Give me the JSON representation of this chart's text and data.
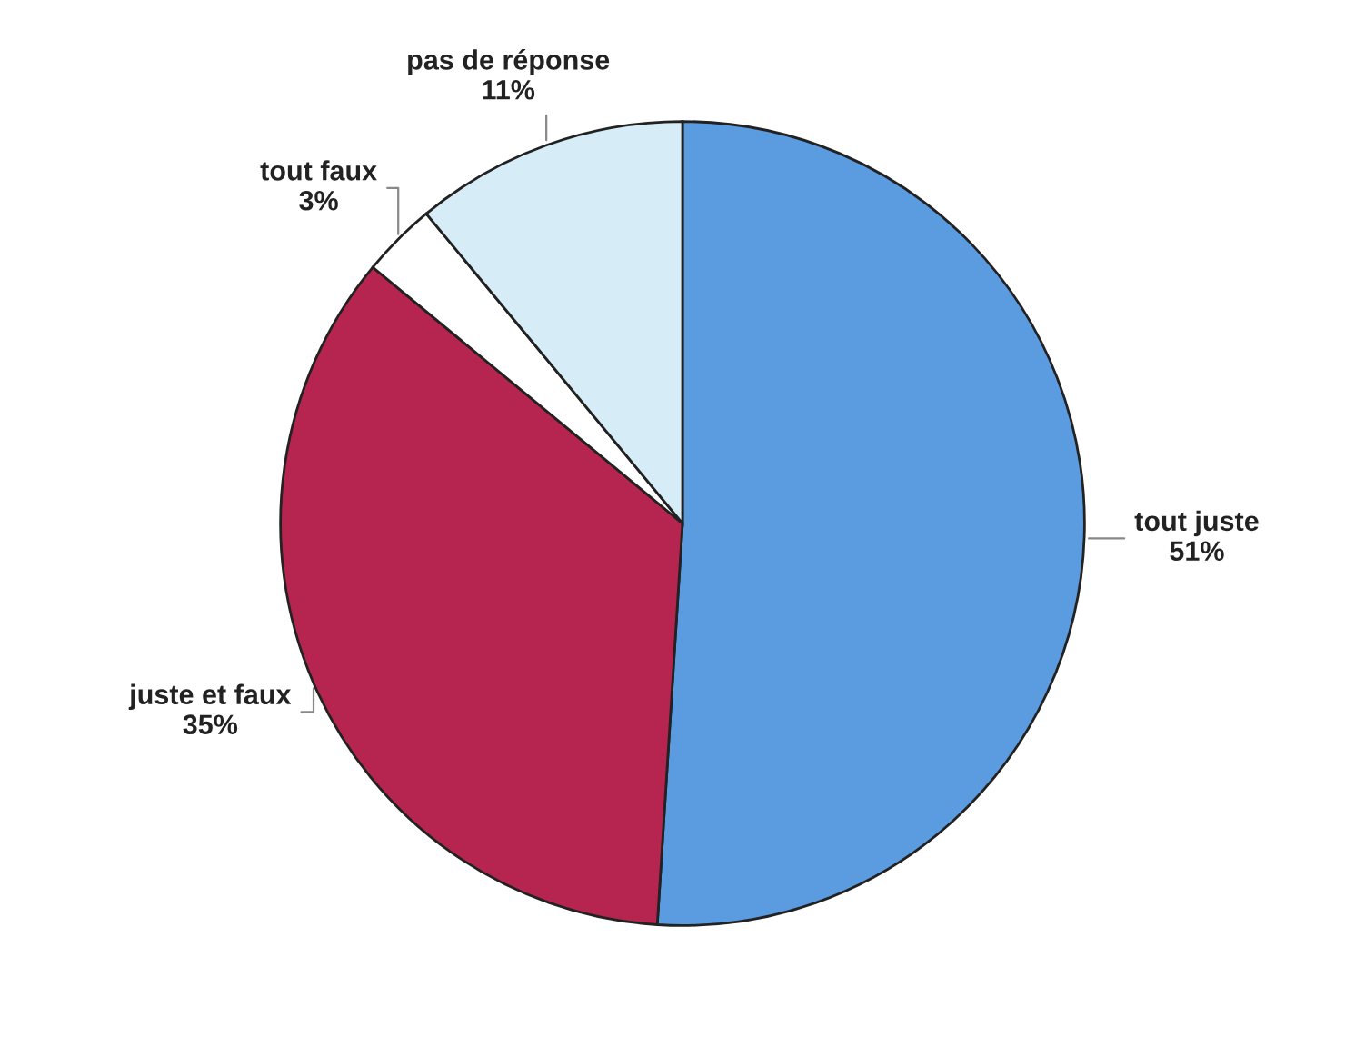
{
  "chart_data": {
    "type": "pie",
    "categories": [
      "tout juste",
      "juste et faux",
      "tout faux",
      "pas de réponse"
    ],
    "values": [
      51,
      35,
      3,
      11
    ],
    "value_labels": [
      "51%",
      "35%",
      "3%",
      "11%"
    ],
    "colors": [
      "#5b9be0",
      "#b5254f",
      "#ffffff",
      "#d6ecf7"
    ],
    "legend": false
  }
}
